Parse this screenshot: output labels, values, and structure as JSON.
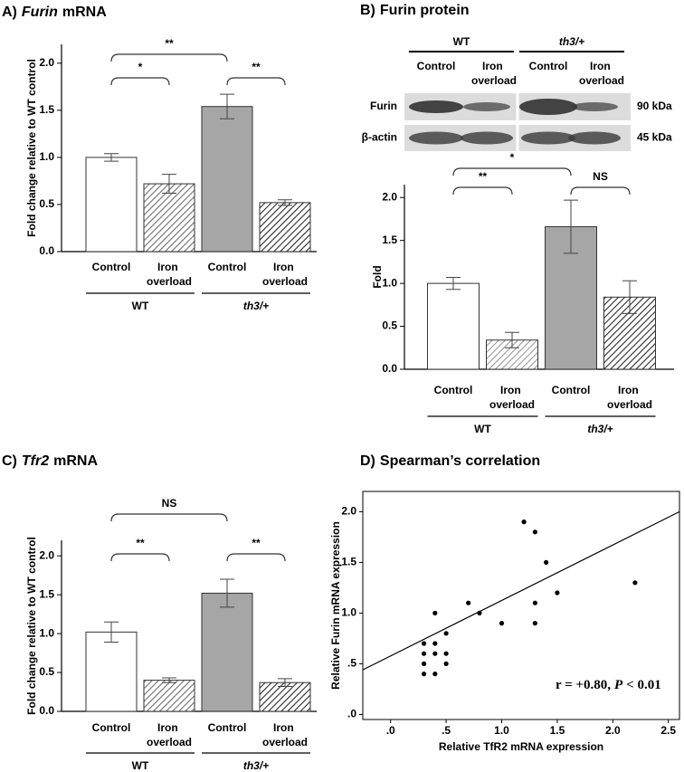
{
  "chart_data": [
    {
      "type": "bar",
      "panel": "A)",
      "title": [
        "Furin",
        "mRNA"
      ],
      "title_italic": [
        true,
        false
      ],
      "ylabel": "Fold change relative to WT control",
      "categories": [
        "Control",
        "Iron overload",
        "Control",
        "Iron overload"
      ],
      "values": [
        1.0,
        0.72,
        1.54,
        0.52
      ],
      "errors": [
        0.04,
        0.1,
        0.13,
        0.03
      ],
      "colors": [
        "#ffffff",
        "#6e6e6e",
        "#a6a6a6",
        "#2b2b2b"
      ],
      "hatched": [
        false,
        true,
        false,
        true
      ],
      "groups": [
        "WT",
        "th3/+"
      ],
      "group_italic": [
        false,
        true
      ],
      "ylim": [
        0,
        2.2
      ],
      "yticks": [
        {
          "value": 0,
          "label": "0.0"
        },
        0.5,
        {
          "value": 1,
          "label": "1.0"
        },
        1.5,
        {
          "value": 2,
          "label": "2.0"
        }
      ],
      "brackets": [
        {
          "from": 0,
          "to": 1,
          "label": "*"
        },
        {
          "from": 0,
          "to": 2,
          "label": "**"
        },
        {
          "from": 2,
          "to": 3,
          "label": "**"
        }
      ]
    },
    {
      "type": "bar",
      "panel": "B)",
      "title": [
        "Furin protein"
      ],
      "title_italic": [
        false
      ],
      "ylabel": "Fold",
      "blot": {
        "groups": [
          "WT",
          "th3/+"
        ],
        "lanes": [
          "Control",
          "Iron overload",
          "Control",
          "Iron overload"
        ],
        "rows": [
          "Furin",
          "β-actin"
        ],
        "sizes": [
          "90 kDa",
          "45 kDa"
        ]
      },
      "categories": [
        "Control",
        "Iron overload",
        "Control",
        "Iron overload"
      ],
      "values": [
        1.0,
        0.34,
        1.66,
        0.84
      ],
      "errors": [
        0.07,
        0.09,
        0.31,
        0.19
      ],
      "colors": [
        "#ffffff",
        "#9a9a9a",
        "#a6a6a6",
        "#2b2b2b"
      ],
      "hatched": [
        false,
        true,
        false,
        true
      ],
      "groups": [
        "WT",
        "th3/+"
      ],
      "group_italic": [
        false,
        true
      ],
      "ylim": [
        0,
        2.15
      ],
      "yticks": [
        {
          "value": 0,
          "label": "0.0"
        },
        0.5,
        {
          "value": 1,
          "label": "1.0"
        },
        1.5,
        {
          "value": 2,
          "label": "2.0"
        }
      ],
      "brackets": [
        {
          "from": 0,
          "to": 1,
          "label": "**"
        },
        {
          "from": 0,
          "to": 2,
          "label": "*"
        },
        {
          "from": 2,
          "to": 3,
          "label": "NS"
        }
      ]
    },
    {
      "type": "bar",
      "panel": "C)",
      "title": [
        "Tfr2",
        "mRNA"
      ],
      "title_italic": [
        true,
        false
      ],
      "ylabel": "Fold change relative to WT control",
      "categories": [
        "Control",
        "Iron overload",
        "Control",
        "Iron overload"
      ],
      "values": [
        1.02,
        0.4,
        1.52,
        0.37
      ],
      "errors": [
        0.13,
        0.03,
        0.18,
        0.05
      ],
      "colors": [
        "#ffffff",
        "#6e6e6e",
        "#a6a6a6",
        "#2b2b2b"
      ],
      "hatched": [
        false,
        true,
        false,
        true
      ],
      "groups": [
        "WT",
        "th3/+"
      ],
      "group_italic": [
        false,
        true
      ],
      "ylim": [
        0,
        2.2
      ],
      "yticks": [
        {
          "value": 0,
          "label": "0.0"
        },
        0.5,
        {
          "value": 1,
          "label": "1.0"
        },
        1.5,
        {
          "value": 2,
          "label": "2.0"
        }
      ],
      "brackets": [
        {
          "from": 0,
          "to": 2,
          "label": "NS"
        },
        {
          "from": 0,
          "to": 1,
          "label": "**"
        },
        {
          "from": 2,
          "to": 3,
          "label": "**"
        }
      ]
    },
    {
      "type": "scatter",
      "panel": "D)",
      "title": [
        "Spearman’s correlation"
      ],
      "title_italic": [
        false
      ],
      "xlabel": "Relative TfR2 mRNA expression",
      "ylabel": "Relative Furin mRNA expression",
      "x": [
        0.3,
        0.3,
        0.3,
        0.3,
        0.4,
        0.4,
        0.4,
        0.4,
        0.5,
        0.5,
        0.5,
        0.7,
        0.8,
        1.0,
        1.2,
        1.3,
        1.3,
        1.3,
        1.4,
        1.5,
        2.2
      ],
      "y": [
        0.4,
        0.5,
        0.6,
        0.7,
        0.4,
        0.6,
        0.7,
        1.0,
        0.5,
        0.6,
        0.8,
        1.1,
        1.0,
        0.9,
        1.9,
        1.8,
        1.1,
        0.9,
        1.5,
        1.2,
        1.3
      ],
      "color": "#000000",
      "fit": {
        "x": [
          -0.25,
          2.6
        ],
        "y": [
          0.44,
          2.0
        ]
      },
      "xlim": [
        -0.25,
        2.6
      ],
      "ylim": [
        -0.05,
        2.2
      ],
      "xticks": [
        {
          "value": 0,
          "label": ".0"
        },
        {
          "value": 0.5,
          "label": ".5"
        },
        {
          "value": 1,
          "label": "1.0"
        },
        1.5,
        {
          "value": 2,
          "label": "2.0"
        },
        2.5
      ],
      "yticks": [
        {
          "value": 0,
          "label": ".0"
        },
        {
          "value": 0.5,
          "label": ".5"
        },
        {
          "value": 1,
          "label": "1.0"
        },
        1.5,
        {
          "value": 2,
          "label": "2.0"
        }
      ],
      "annotation": [
        "r = +0.80,",
        "P",
        "< 0.01"
      ],
      "annotation_italic": [
        false,
        true,
        false
      ]
    }
  ]
}
